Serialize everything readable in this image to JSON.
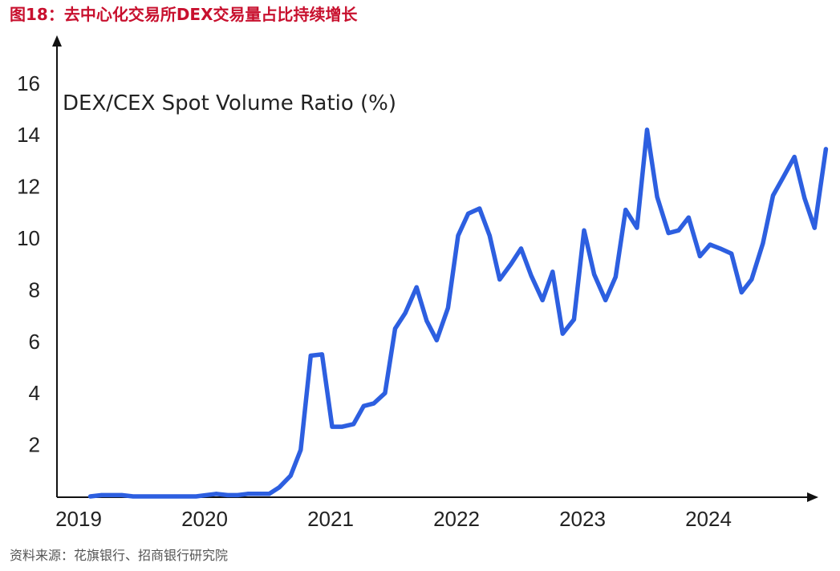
{
  "figure_title": "图18：去中心化交易所DEX交易量占比持续增长",
  "source": "资料来源：花旗银行、招商银行研究院",
  "colors": {
    "line": "#2d5fe0",
    "title": "#c8102e",
    "axis": "#111111"
  },
  "chart_data": {
    "type": "line",
    "title": "DEX/CEX Spot Volume Ratio (%)",
    "xlabel": "",
    "ylabel": "",
    "ylim": [
      0,
      18
    ],
    "yticks": [
      "2",
      "4",
      "6",
      "8",
      "10",
      "12",
      "14",
      "16"
    ],
    "xticks": [
      "2019",
      "2020",
      "2021",
      "2022",
      "2023",
      "2024"
    ],
    "grid": false,
    "series": [
      {
        "values": [
          [
            2019.08,
            0.0
          ],
          [
            2019.17,
            0.05
          ],
          [
            2019.33,
            0.05
          ],
          [
            2019.42,
            0.0
          ],
          [
            2019.58,
            0.0
          ],
          [
            2019.75,
            0.0
          ],
          [
            2019.92,
            0.0
          ],
          [
            2020.08,
            0.1
          ],
          [
            2020.17,
            0.05
          ],
          [
            2020.25,
            0.05
          ],
          [
            2020.33,
            0.1
          ],
          [
            2020.42,
            0.1
          ],
          [
            2020.5,
            0.1
          ],
          [
            2020.58,
            0.35
          ],
          [
            2020.67,
            0.8
          ],
          [
            2020.75,
            1.8
          ],
          [
            2020.83,
            5.45
          ],
          [
            2020.92,
            5.5
          ],
          [
            2021.0,
            2.7
          ],
          [
            2021.08,
            2.7
          ],
          [
            2021.17,
            2.8
          ],
          [
            2021.25,
            3.5
          ],
          [
            2021.33,
            3.6
          ],
          [
            2021.42,
            4.0
          ],
          [
            2021.5,
            6.5
          ],
          [
            2021.58,
            7.1
          ],
          [
            2021.67,
            8.1
          ],
          [
            2021.75,
            6.8
          ],
          [
            2021.83,
            6.05
          ],
          [
            2021.92,
            7.3
          ],
          [
            2022.0,
            10.1
          ],
          [
            2022.08,
            10.95
          ],
          [
            2022.17,
            11.15
          ],
          [
            2022.25,
            10.1
          ],
          [
            2022.33,
            8.4
          ],
          [
            2022.42,
            9.0
          ],
          [
            2022.5,
            9.6
          ],
          [
            2022.58,
            8.55
          ],
          [
            2022.67,
            7.6
          ],
          [
            2022.75,
            8.7
          ],
          [
            2022.83,
            6.3
          ],
          [
            2022.92,
            6.85
          ],
          [
            2023.0,
            10.3
          ],
          [
            2023.08,
            8.6
          ],
          [
            2023.17,
            7.6
          ],
          [
            2023.25,
            8.5
          ],
          [
            2023.33,
            11.1
          ],
          [
            2023.42,
            10.4
          ],
          [
            2023.5,
            14.2
          ],
          [
            2023.58,
            11.6
          ],
          [
            2023.67,
            10.2
          ],
          [
            2023.75,
            10.3
          ],
          [
            2023.83,
            10.8
          ],
          [
            2023.92,
            9.3
          ],
          [
            2024.0,
            9.75
          ],
          [
            2024.08,
            9.6
          ],
          [
            2024.17,
            9.4
          ],
          [
            2024.25,
            7.9
          ],
          [
            2024.33,
            8.4
          ],
          [
            2024.42,
            9.8
          ],
          [
            2024.5,
            11.65
          ],
          [
            2024.58,
            12.35
          ],
          [
            2024.67,
            13.15
          ],
          [
            2024.75,
            11.55
          ],
          [
            2024.83,
            10.4
          ],
          [
            2024.92,
            13.45
          ]
        ]
      }
    ]
  }
}
